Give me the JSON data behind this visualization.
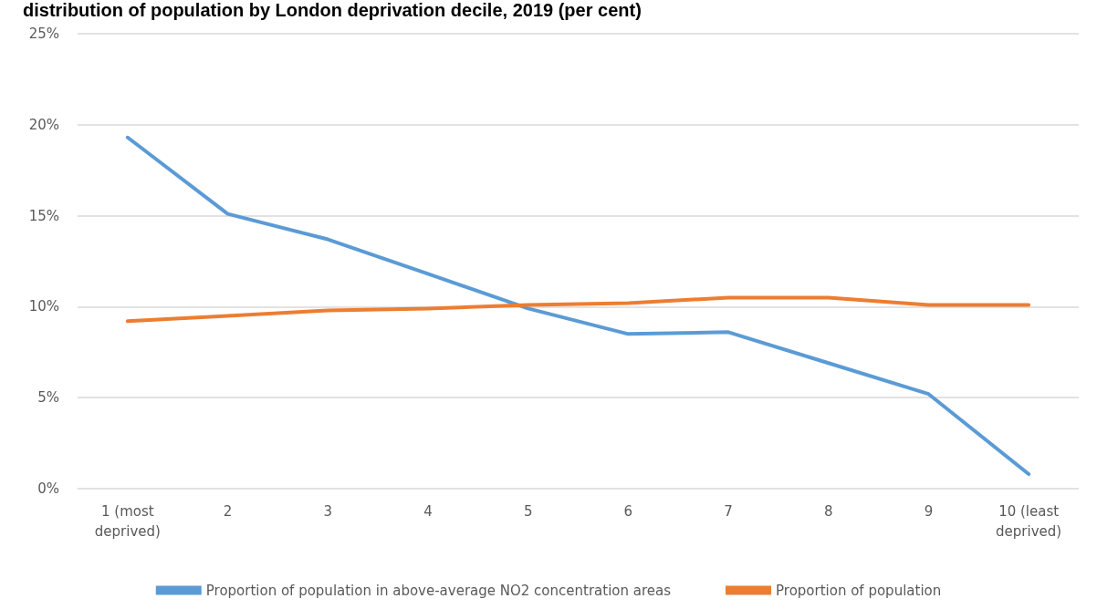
{
  "chart_data": {
    "type": "line",
    "title": "distribution of population by London deprivation decile, 2019 (per cent)",
    "categories": [
      "1 (most deprived)",
      "2",
      "3",
      "4",
      "5",
      "6",
      "7",
      "8",
      "9",
      "10 (least deprived)"
    ],
    "series": [
      {
        "name": "Proportion of population in above-average NO2 concentration areas",
        "color": "#5b9bd5",
        "values": [
          19.3,
          15.1,
          13.7,
          11.8,
          9.9,
          8.5,
          8.6,
          6.9,
          5.2,
          0.8
        ]
      },
      {
        "name": "Proportion of population",
        "color": "#ed7d31",
        "values": [
          9.2,
          9.5,
          9.8,
          9.9,
          10.1,
          10.2,
          10.5,
          10.5,
          10.1,
          10.1
        ]
      }
    ],
    "ylim": [
      0,
      25
    ],
    "yticks": [
      {
        "value": 0,
        "label": "0%"
      },
      {
        "value": 5,
        "label": "5%"
      },
      {
        "value": 10,
        "label": "10%"
      },
      {
        "value": 15,
        "label": "15%"
      },
      {
        "value": 20,
        "label": "20%"
      },
      {
        "value": 25,
        "label": "25%"
      }
    ],
    "grid": "y",
    "legend": "bottom",
    "marker": "none",
    "line_style": "solid"
  }
}
